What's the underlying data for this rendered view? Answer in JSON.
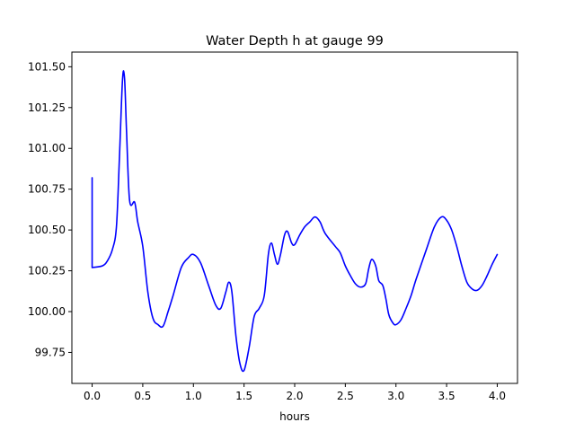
{
  "chart_data": {
    "type": "line",
    "title": "Water Depth h at gauge 99",
    "xlabel": "hours",
    "ylabel": "",
    "xlim": [
      -0.2,
      4.2
    ],
    "ylim": [
      99.56,
      101.59
    ],
    "x_ticks": [
      0.0,
      0.5,
      1.0,
      1.5,
      2.0,
      2.5,
      3.0,
      3.5,
      4.0
    ],
    "x_tick_labels": [
      "0.0",
      "0.5",
      "1.0",
      "1.5",
      "2.0",
      "2.5",
      "3.0",
      "3.5",
      "4.0"
    ],
    "y_ticks": [
      99.75,
      100.0,
      100.25,
      100.5,
      100.75,
      101.0,
      101.25,
      101.5
    ],
    "y_tick_labels": [
      "99.75",
      "100.00",
      "100.25",
      "100.50",
      "100.75",
      "101.00",
      "101.25",
      "101.50"
    ],
    "grid": false,
    "colors": {
      "series": "#0000ff"
    },
    "series": [
      {
        "x": [
          0.0,
          0.0,
          0.1,
          0.15,
          0.2,
          0.24,
          0.27,
          0.3,
          0.32,
          0.34,
          0.37,
          0.42,
          0.45,
          0.5,
          0.55,
          0.6,
          0.65,
          0.7,
          0.75,
          0.8,
          0.88,
          0.95,
          1.0,
          1.07,
          1.15,
          1.22,
          1.27,
          1.32,
          1.35,
          1.38,
          1.42,
          1.46,
          1.5,
          1.55,
          1.6,
          1.65,
          1.7,
          1.74,
          1.77,
          1.8,
          1.83,
          1.86,
          1.9,
          1.93,
          1.97,
          2.0,
          2.05,
          2.1,
          2.15,
          2.2,
          2.25,
          2.3,
          2.4,
          2.45,
          2.5,
          2.55,
          2.6,
          2.65,
          2.7,
          2.73,
          2.76,
          2.8,
          2.83,
          2.87,
          2.9,
          2.93,
          2.97,
          3.0,
          3.05,
          3.1,
          3.15,
          3.2,
          3.3,
          3.38,
          3.45,
          3.5,
          3.55,
          3.6,
          3.65,
          3.7,
          3.75,
          3.8,
          3.85,
          3.9,
          3.95,
          4.0
        ],
        "values": [
          100.82,
          100.27,
          100.28,
          100.31,
          100.38,
          100.52,
          100.95,
          101.42,
          101.43,
          101.1,
          100.68,
          100.67,
          100.55,
          100.4,
          100.12,
          99.96,
          99.92,
          99.91,
          100.0,
          100.1,
          100.27,
          100.33,
          100.35,
          100.3,
          100.16,
          100.04,
          100.02,
          100.12,
          100.18,
          100.12,
          99.85,
          99.68,
          99.64,
          99.78,
          99.97,
          100.02,
          100.1,
          100.35,
          100.42,
          100.35,
          100.29,
          100.35,
          100.47,
          100.49,
          100.42,
          100.41,
          100.47,
          100.52,
          100.55,
          100.58,
          100.55,
          100.48,
          100.4,
          100.36,
          100.28,
          100.22,
          100.17,
          100.15,
          100.17,
          100.26,
          100.32,
          100.28,
          100.19,
          100.16,
          100.08,
          99.98,
          99.93,
          99.92,
          99.95,
          100.02,
          100.1,
          100.2,
          100.38,
          100.52,
          100.58,
          100.56,
          100.5,
          100.4,
          100.28,
          100.18,
          100.14,
          100.13,
          100.16,
          100.22,
          100.29,
          100.35
        ]
      }
    ]
  }
}
